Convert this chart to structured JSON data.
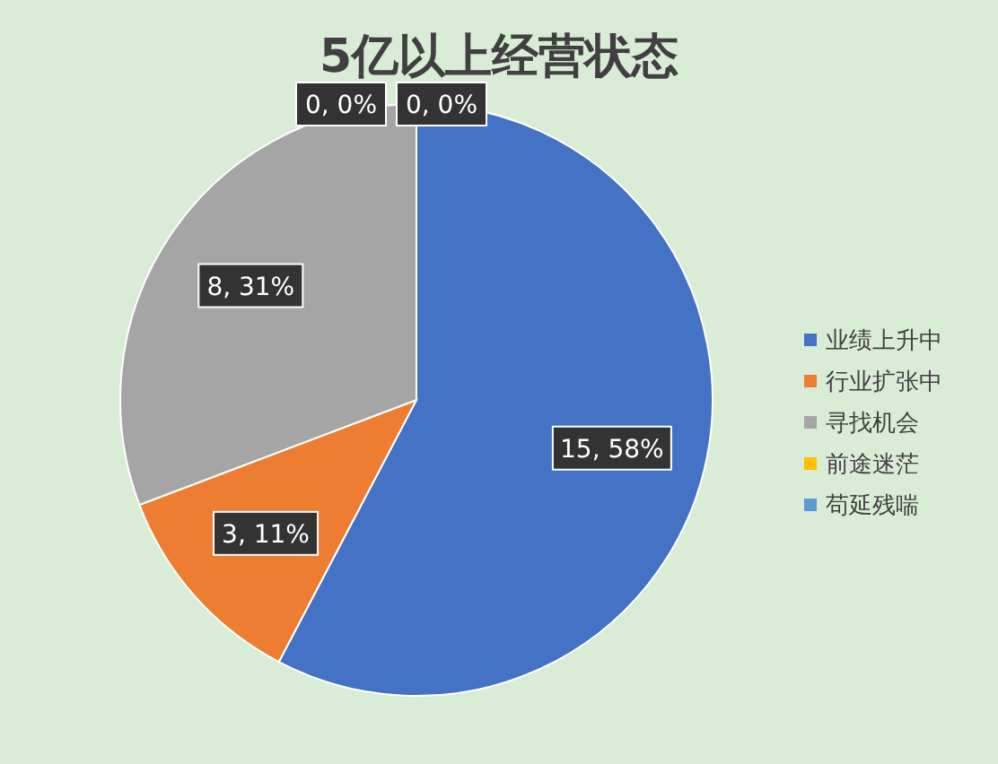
{
  "chart_data": {
    "type": "pie",
    "title": "5亿以上经营状态",
    "categories": [
      "业绩上升中",
      "行业扩张中",
      "寻找机会",
      "前途迷茫",
      "苟延残喘"
    ],
    "values": [
      15,
      3,
      8,
      0,
      0
    ],
    "colors": [
      "#4472c4",
      "#ed7d31",
      "#a5a5a5",
      "#ffc000",
      "#5b9bd5"
    ],
    "value_labels": [
      "15, 58%",
      "3, 11%",
      "8, 31%",
      "0, 0%",
      "0, 0%"
    ],
    "legend": "right"
  }
}
